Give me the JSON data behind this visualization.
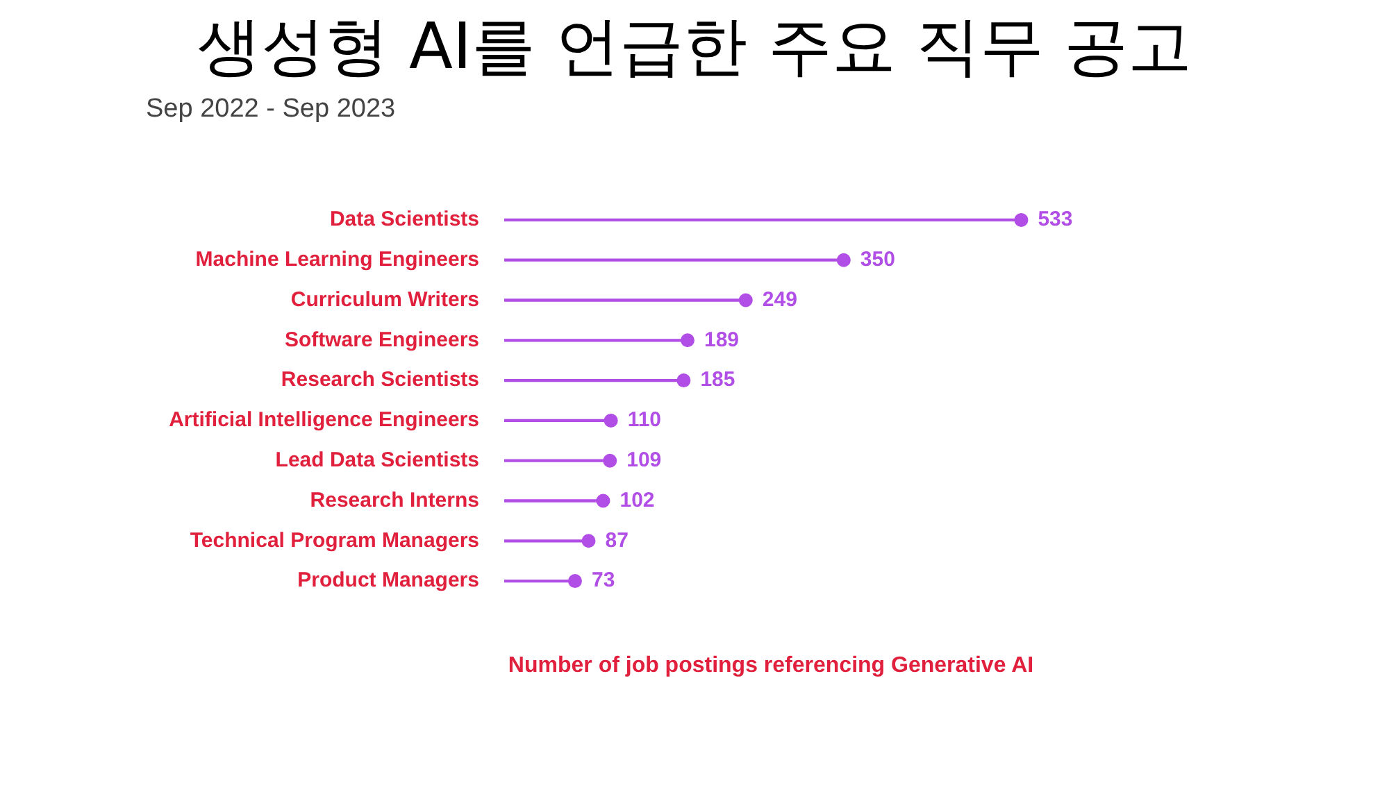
{
  "chart_data": {
    "type": "lollipop",
    "orientation": "horizontal",
    "title": "생성형 AI를 언급한 주요 직무 공고",
    "subtitle": "Sep 2022 - Sep 2023",
    "xlabel": "Number of job postings referencing Generative AI",
    "categories": [
      "Data Scientists",
      "Machine Learning Engineers",
      "Curriculum Writers",
      "Software Engineers",
      "Research Scientists",
      "Artificial Intelligence Engineers",
      "Lead Data Scientists",
      "Research Interns",
      "Technical Program Managers",
      "Product Managers"
    ],
    "values": [
      533,
      350,
      249,
      189,
      185,
      110,
      109,
      102,
      87,
      73
    ],
    "color": "#b04ee6",
    "data_labels": true,
    "legend": false,
    "tick_labels": "y",
    "marker": "circle"
  }
}
